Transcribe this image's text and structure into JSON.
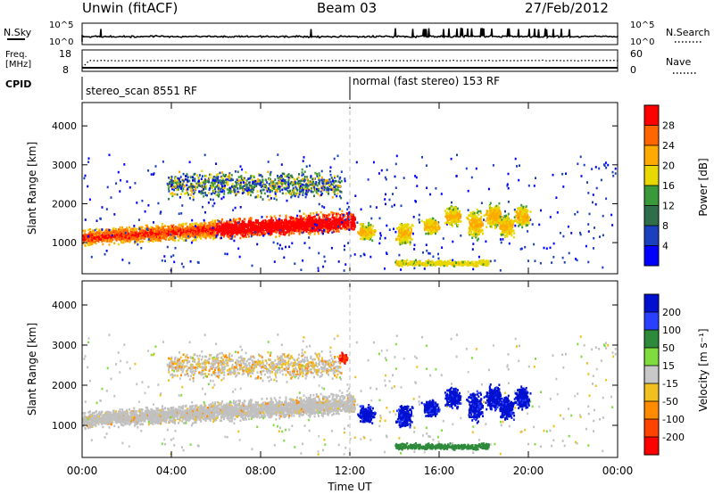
{
  "header": {
    "station": "Unwin (fitACF)",
    "beam": "Beam 03",
    "date": "27/Feb/2012"
  },
  "panels": {
    "nsky": {
      "label": "N.Sky",
      "right_label": "N.Search",
      "left_ticks": [
        "10^5",
        "10^0"
      ],
      "right_ticks": [
        "10^5",
        "10^0"
      ]
    },
    "freq": {
      "label": "Freq.",
      "unit": "[MHz]",
      "left_ticks": [
        "18",
        "8"
      ],
      "right_label": "Nave",
      "right_ticks": [
        "60",
        "0"
      ]
    },
    "cpid": {
      "label": "CPID",
      "modes": [
        {
          "name": "stereo_scan 8551 RF",
          "start_hour": 0
        },
        {
          "name": "normal (fast stereo) 153 RF",
          "start_hour": 12
        }
      ]
    }
  },
  "chart_data": [
    {
      "type": "heatmap",
      "name": "power",
      "ylabel": "Slant Range [km]",
      "colorbar_label": "Power [dB]",
      "colorbar_ticks": [
        "28",
        "24",
        "20",
        "16",
        "12",
        "8",
        "4"
      ],
      "colorbar_colors": [
        "#ff0000",
        "#ff6600",
        "#ffaa00",
        "#e8d800",
        "#3a9a3a",
        "#2f6e4a",
        "#1a3fbf",
        "#0000ff"
      ],
      "y_ticks": [
        "4000",
        "3000",
        "2000",
        "1000"
      ],
      "ylim": [
        200,
        4600
      ],
      "xlim": [
        0,
        24
      ],
      "x_ticks": [
        "00:00",
        "04:00",
        "08:00",
        "12:00",
        "16:00",
        "20:00",
        "00:00"
      ]
    },
    {
      "type": "heatmap",
      "name": "velocity",
      "ylabel": "Slant Range [km]",
      "colorbar_label": "Velocity [m s⁻¹]",
      "colorbar_ticks": [
        "200",
        "100",
        "50",
        "15",
        "-15",
        "-50",
        "-100",
        "-200"
      ],
      "colorbar_colors": [
        "#0010d0",
        "#2a40ff",
        "#2d8a3a",
        "#7fdc3f",
        "#c8c8c8",
        "#f0c020",
        "#ff8c00",
        "#ff4400",
        "#ff0000"
      ],
      "y_ticks": [
        "4000",
        "3000",
        "2000",
        "1000"
      ],
      "ylim": [
        200,
        4600
      ],
      "xlim": [
        0,
        24
      ],
      "x_ticks": [
        "00:00",
        "04:00",
        "08:00",
        "12:00",
        "16:00",
        "20:00",
        "00:00"
      ],
      "xlabel": "Time UT"
    }
  ],
  "colors": {
    "gs_gray": "#c0c0c0",
    "divider": "#bbbbbb"
  }
}
